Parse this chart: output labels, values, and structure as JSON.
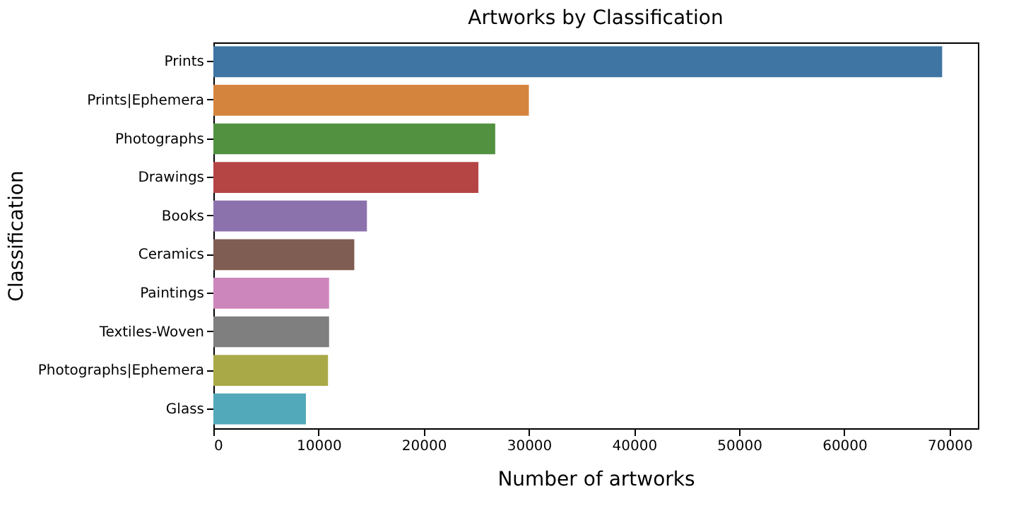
{
  "chart_data": {
    "type": "bar",
    "orientation": "horizontal",
    "title": "Artworks by Classification",
    "xlabel": "Number of artworks",
    "ylabel": "Classification",
    "categories": [
      "Prints",
      "Prints|Ephemera",
      "Photographs",
      "Drawings",
      "Books",
      "Ceramics",
      "Paintings",
      "Textiles-Woven",
      "Photographs|Ephemera",
      "Glass"
    ],
    "values": [
      69300,
      30000,
      26800,
      25200,
      14600,
      13400,
      11000,
      11000,
      10900,
      8800
    ],
    "colors": [
      "#3e75a3",
      "#d5843e",
      "#51913f",
      "#b44544",
      "#8c72ad",
      "#7f5d52",
      "#cd86bb",
      "#7f7f7f",
      "#aaa948",
      "#52a9ba"
    ],
    "xlim": [
      0,
      72700
    ],
    "xticks": [
      0,
      10000,
      20000,
      30000,
      40000,
      50000,
      60000,
      70000
    ],
    "grid": false,
    "legend": false
  }
}
